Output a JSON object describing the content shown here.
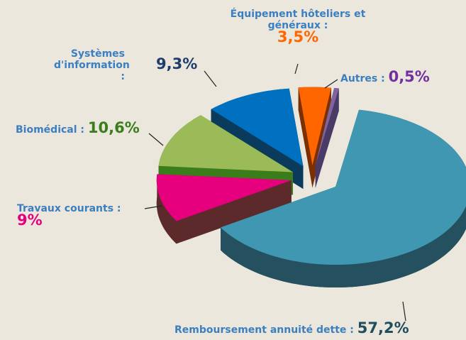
{
  "chart_data": {
    "type": "pie",
    "categories": [
      "Remboursement annuité dette :",
      "Travaux courants :",
      "Biomédical :",
      "Systèmes d'information :",
      "Équipement hôteliers et généraux :",
      "Autres :"
    ],
    "values": [
      57.2,
      9,
      10.6,
      9.3,
      3.5,
      0.5
    ],
    "value_labels": [
      "57,2%",
      "9%",
      "10,6%",
      "9,3%",
      "3,5%",
      "0,5%"
    ],
    "colors": [
      "#3f97b2",
      "#e6007e",
      "#9bbb59",
      "#0070c0",
      "#ff6600",
      "#8064a2"
    ],
    "side_colors": [
      "#24505f",
      "#5c2a2a",
      "#3a7d1a",
      "#0b3b5c",
      "#7a3000",
      "#4a3a66"
    ]
  }
}
